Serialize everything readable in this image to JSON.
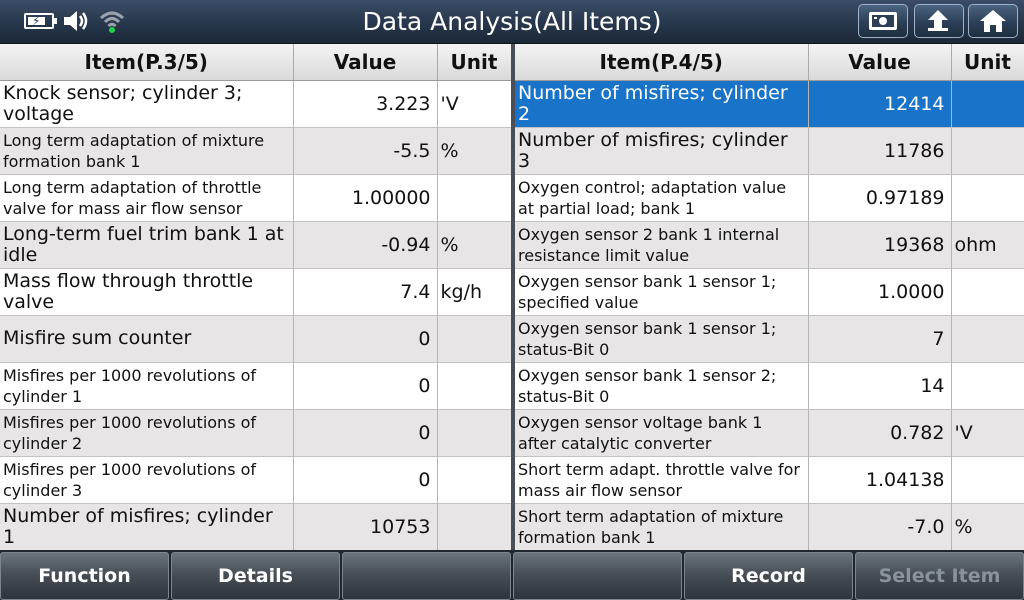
{
  "window": {
    "title": "Data Analysis(All Items)"
  },
  "status_icons": [
    "battery-charging-icon",
    "speaker-icon",
    "wifi-icon"
  ],
  "top_buttons": [
    "screenshot-icon",
    "back-icon",
    "home-icon"
  ],
  "left_table": {
    "headers": {
      "item": "Item(P.3/5)",
      "value": "Value",
      "unit": "Unit"
    },
    "rows": [
      {
        "item": "Knock sensor; cylinder 3; voltage",
        "value": "3.223",
        "unit": "'V"
      },
      {
        "item": "Long term adaptation of mixture formation bank 1",
        "value": "-5.5",
        "unit": "%"
      },
      {
        "item": "Long term adaptation of throttle valve for mass air flow sensor",
        "value": "1.00000",
        "unit": ""
      },
      {
        "item": "Long-term fuel trim bank 1 at idle",
        "value": "-0.94",
        "unit": "%"
      },
      {
        "item": "Mass flow through throttle valve",
        "value": "7.4",
        "unit": "kg/h"
      },
      {
        "item": "Misfire sum counter",
        "value": "0",
        "unit": ""
      },
      {
        "item": "Misfires per 1000 revolutions of cylinder 1",
        "value": "0",
        "unit": ""
      },
      {
        "item": "Misfires per 1000 revolutions of cylinder 2",
        "value": "0",
        "unit": ""
      },
      {
        "item": "Misfires per 1000 revolutions of cylinder 3",
        "value": "0",
        "unit": ""
      },
      {
        "item": "Number of misfires; cylinder 1",
        "value": "10753",
        "unit": ""
      }
    ]
  },
  "right_table": {
    "headers": {
      "item": "Item(P.4/5)",
      "value": "Value",
      "unit": "Unit"
    },
    "rows": [
      {
        "item": "Number of misfires; cylinder 2",
        "value": "12414",
        "unit": ""
      },
      {
        "item": "Number of misfires; cylinder 3",
        "value": "11786",
        "unit": ""
      },
      {
        "item": "Oxygen control; adaptation value at partial load; bank 1",
        "value": "0.97189",
        "unit": ""
      },
      {
        "item": "Oxygen sensor 2 bank 1 internal resistance limit value",
        "value": "19368",
        "unit": "ohm"
      },
      {
        "item": "Oxygen sensor bank 1 sensor 1; specified value",
        "value": "1.0000",
        "unit": ""
      },
      {
        "item": "Oxygen sensor bank 1 sensor 1; status-Bit 0",
        "value": "7",
        "unit": ""
      },
      {
        "item": "Oxygen sensor bank 1 sensor 2; status-Bit 0",
        "value": "14",
        "unit": ""
      },
      {
        "item": "Oxygen sensor voltage bank 1 after catalytic converter",
        "value": "0.782",
        "unit": "'V"
      },
      {
        "item": "Short term adapt. throttle valve for mass air flow sensor",
        "value": "1.04138",
        "unit": ""
      },
      {
        "item": "Short term adaptation of mixture formation bank 1",
        "value": "-7.0",
        "unit": "%"
      }
    ],
    "selected_row": 0
  },
  "bottom_bar": {
    "buttons": [
      "Function",
      "Details",
      "",
      "",
      "Record",
      "Select Item"
    ],
    "disabled": [
      false,
      false,
      false,
      false,
      false,
      true
    ]
  },
  "colors": {
    "selection": "#1873c9",
    "topbar": "#2a3a50"
  }
}
